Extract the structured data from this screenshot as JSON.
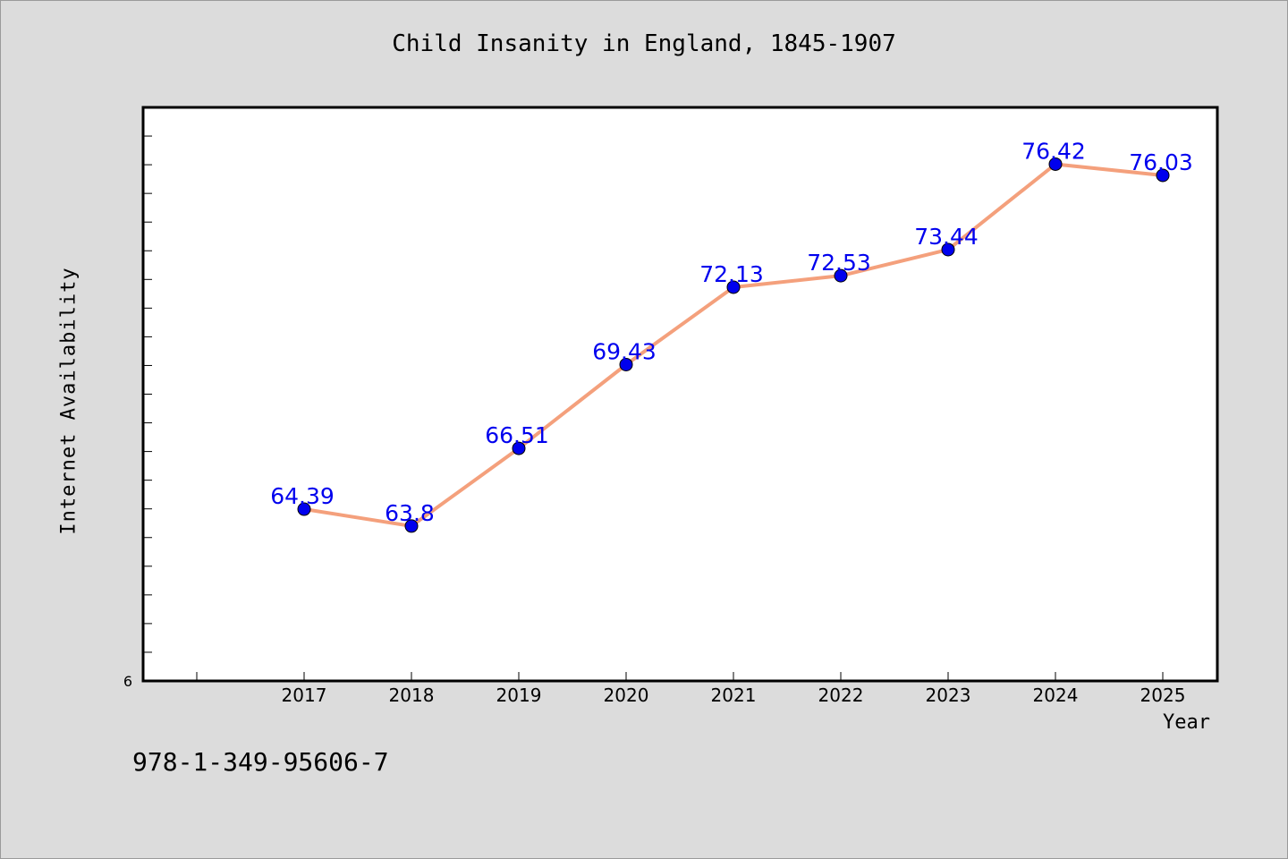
{
  "chart_data": {
    "type": "line",
    "title": "Child Insanity in England, 1845-1907",
    "xlabel": "Year",
    "ylabel": "Internet Availability",
    "categories": [
      "2017",
      "2018",
      "2019",
      "2020",
      "2021",
      "2022",
      "2023",
      "2024",
      "2025"
    ],
    "series": [
      {
        "values": [
          64.39,
          63.8,
          66.51,
          69.43,
          72.13,
          72.53,
          73.44,
          76.42,
          76.03
        ],
        "labels": [
          "64.39",
          "63.8",
          "66.51",
          "69.43",
          "72.13",
          "72.53",
          "73.44",
          "76.42",
          "76.03"
        ],
        "line_color": "#f4a07c",
        "marker_color": "#0000ee",
        "label_color": "#0000ee"
      }
    ],
    "y_tick_label": "6",
    "ylim": [
      58.4,
      78.4
    ],
    "grid": false,
    "legend": "none"
  },
  "footer": {
    "code": "978-1-349-95606-7"
  }
}
